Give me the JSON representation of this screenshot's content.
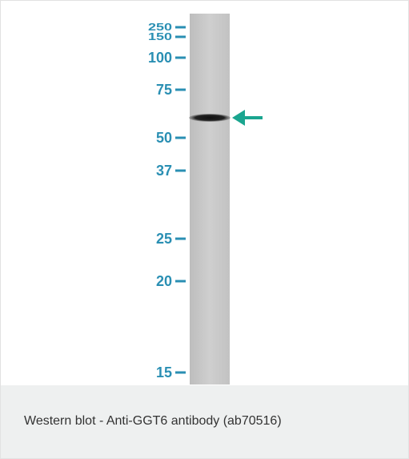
{
  "figure": {
    "markers": [
      "250",
      "150",
      "100",
      "75",
      "50",
      "37",
      "25",
      "20",
      "15"
    ],
    "caption": "Western blot - Anti-GGT6 antibody (ab70516)"
  }
}
